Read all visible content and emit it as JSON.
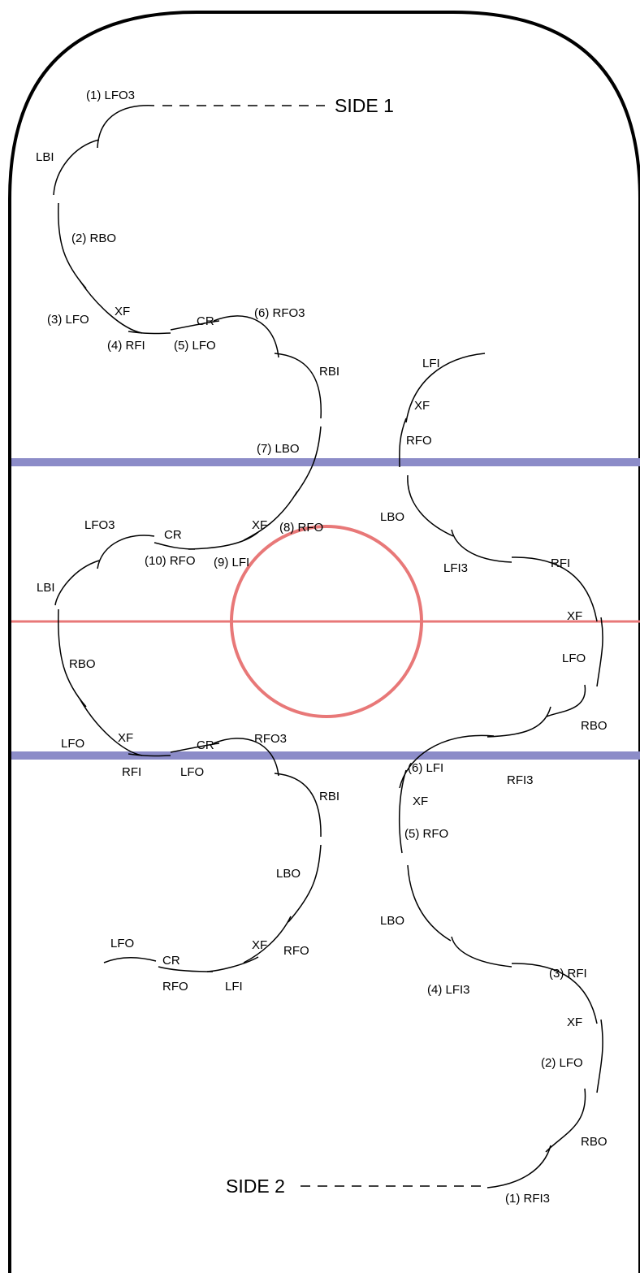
{
  "colors": {
    "blue_line": "#8c8cc8",
    "red_line": "#e87878",
    "boards": "#000000"
  },
  "side_labels": {
    "side1": "SIDE 1",
    "side2": "SIDE 2"
  },
  "pattern1": {
    "lfo3_1": "(1) LFO3",
    "lbi": "LBI",
    "rbo_2": "(2) RBO",
    "lfo_3": "(3) LFO",
    "xf": "XF",
    "rfi_4": "(4) RFI",
    "cr": "CR",
    "lfo_5": "(5) LFO",
    "rfo3_6": "(6) RFO3",
    "rbi": "RBI",
    "lbo_7": "(7) LBO",
    "xf_2": "XF",
    "rfo_8": "(8) RFO",
    "lfi_9": "(9) LFI",
    "rfo_10": "(10) RFO",
    "cr_2": "CR",
    "lfo3_b": "LFO3"
  },
  "pattern2": {
    "lbi": "LBI",
    "rbo": "RBO",
    "lfo": "LFO",
    "xf": "XF",
    "rfi": "RFI",
    "lfo_b": "LFO",
    "cr": "CR",
    "rfo3": "RFO3",
    "rbi": "RBI",
    "lbo": "LBO",
    "xf_2": "XF",
    "rfo": "RFO",
    "lfi": "LFI",
    "rfo_b": "RFO",
    "cr_2": "CR",
    "lfo_end": "LFO"
  },
  "pattern3": {
    "lfi": "LFI",
    "xf": "XF",
    "rfo": "RFO",
    "lbo": "LBO",
    "lfi3": "LFI3",
    "rfi": "RFI",
    "xf_2": "XF",
    "lfo": "LFO",
    "rbo": "RBO",
    "rfi3": "RFI3",
    "lfi_6": "(6) LFI"
  },
  "pattern4": {
    "xf": "XF",
    "rfo_5": "(5) RFO",
    "lbo": "LBO",
    "lfi3_4": "(4) LFI3",
    "rfi_3": "(3) RFI",
    "xf_2": "XF",
    "lfo_2": "(2) LFO",
    "rbo": "RBO",
    "rfi3_1": "(1) RFI3"
  }
}
